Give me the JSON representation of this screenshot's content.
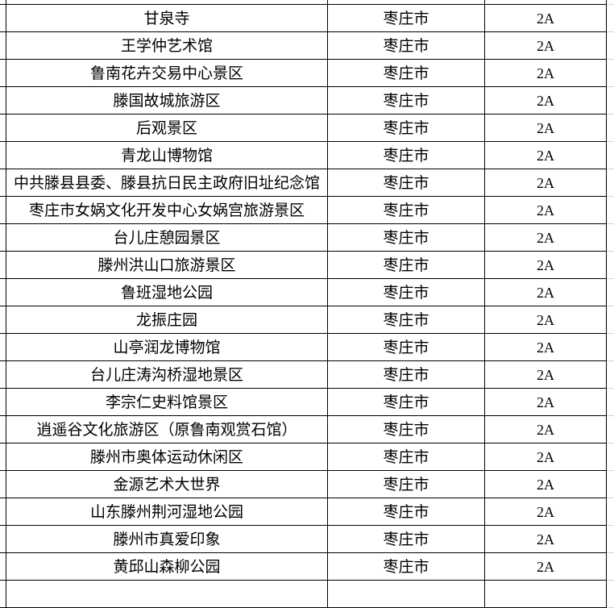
{
  "rows": [
    {
      "name": "",
      "city": "",
      "grade": ""
    },
    {
      "name": "甘泉寺",
      "city": "枣庄市",
      "grade": "2A"
    },
    {
      "name": "王学仲艺术馆",
      "city": "枣庄市",
      "grade": "2A"
    },
    {
      "name": "鲁南花卉交易中心景区",
      "city": "枣庄市",
      "grade": "2A"
    },
    {
      "name": "滕国故城旅游区",
      "city": "枣庄市",
      "grade": "2A"
    },
    {
      "name": "后观景区",
      "city": "枣庄市",
      "grade": "2A"
    },
    {
      "name": "青龙山博物馆",
      "city": "枣庄市",
      "grade": "2A"
    },
    {
      "name": "中共滕县县委、滕县抗日民主政府旧址纪念馆",
      "city": "枣庄市",
      "grade": "2A"
    },
    {
      "name": "枣庄市女娲文化开发中心女娲宫旅游景区",
      "city": "枣庄市",
      "grade": "2A"
    },
    {
      "name": "台儿庄憩园景区",
      "city": "枣庄市",
      "grade": "2A"
    },
    {
      "name": "滕州洪山口旅游景区",
      "city": "枣庄市",
      "grade": "2A"
    },
    {
      "name": "鲁班湿地公园",
      "city": "枣庄市",
      "grade": "2A"
    },
    {
      "name": "龙振庄园",
      "city": "枣庄市",
      "grade": "2A"
    },
    {
      "name": "山亭润龙博物馆",
      "city": "枣庄市",
      "grade": "2A"
    },
    {
      "name": "台儿庄涛沟桥湿地景区",
      "city": "枣庄市",
      "grade": "2A"
    },
    {
      "name": "李宗仁史料馆景区",
      "city": "枣庄市",
      "grade": "2A"
    },
    {
      "name": "逍遥谷文化旅游区（原鲁南观赏石馆）",
      "city": "枣庄市",
      "grade": "2A"
    },
    {
      "name": "滕州市奥体运动休闲区",
      "city": "枣庄市",
      "grade": "2A"
    },
    {
      "name": "金源艺术大世界",
      "city": "枣庄市",
      "grade": "2A"
    },
    {
      "name": "山东滕州荆河湿地公园",
      "city": "枣庄市",
      "grade": "2A"
    },
    {
      "name": "滕州市真爱印象",
      "city": "枣庄市",
      "grade": "2A"
    },
    {
      "name": "黄邱山森柳公园",
      "city": "枣庄市",
      "grade": "2A"
    },
    {
      "name": "",
      "city": "",
      "grade": ""
    }
  ]
}
